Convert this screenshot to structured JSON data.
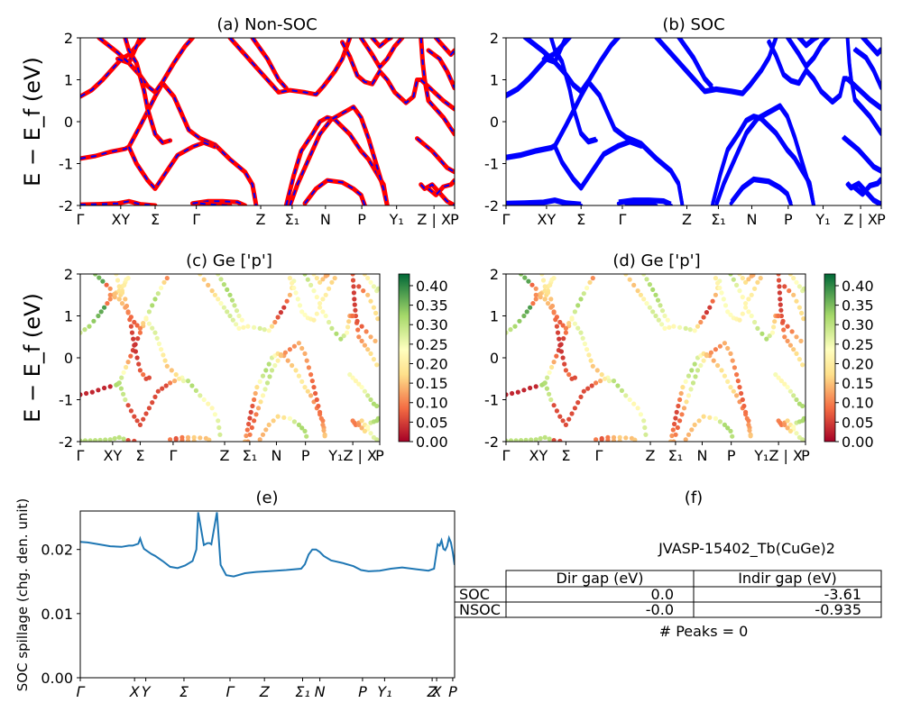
{
  "figure": {
    "ylabel_bands": "E − E_f (eV)",
    "ylabel_spillage": "SOC spillage (chg. den. unit)"
  },
  "kpath_ticks": [
    "Γ",
    "X",
    "Y",
    "Σ",
    "Γ",
    "Z",
    "Σ₁",
    "N",
    "P",
    "Y₁",
    "Z | X",
    "P"
  ],
  "chart_data": [
    {
      "id": "a",
      "type": "line",
      "title": "(a) Non-SOC",
      "xlabel": "",
      "ylabel": "E − E_f (eV)",
      "ylim": [
        -2,
        2
      ],
      "yticks": [
        -2,
        -1,
        0,
        1,
        2
      ],
      "xtick_labels": [
        "Γ",
        "XY",
        "Σ",
        "Γ",
        "Z",
        "Σ₁",
        "N",
        "P",
        "Y₁",
        "Z | X",
        "P"
      ],
      "series_colors": [
        "#ff0000",
        "#0000ff"
      ],
      "line_style": "red solid overlaid with blue dashes",
      "bands": "#bands"
    },
    {
      "id": "b",
      "type": "line",
      "title": "(b) SOC",
      "ylim": [
        -2,
        2
      ],
      "yticks": [
        -2,
        -1,
        0,
        1,
        2
      ],
      "xtick_labels": [
        "Γ",
        "XY",
        "Σ",
        "Γ",
        "Z",
        "Σ₁",
        "N",
        "P",
        "Y₁",
        "Z | X",
        "P"
      ],
      "series_colors": [
        "#0000ff"
      ]
    },
    {
      "id": "c",
      "type": "scatter",
      "title": "(c)  Ge ['p']",
      "ylabel": "E − E_f (eV)",
      "ylim": [
        -2,
        2
      ],
      "yticks": [
        -2,
        -1,
        0,
        1,
        2
      ],
      "xtick_labels": [
        "Γ",
        "XY",
        "Σ",
        "Γ",
        "Z",
        "Σ₁",
        "N",
        "P",
        "Y₁Z | X",
        "P"
      ],
      "colorbar": {
        "cmap": "RdYlGn",
        "range": [
          0.0,
          0.43
        ],
        "ticks": [
          "0.00",
          "0.05",
          "0.10",
          "0.15",
          "0.20",
          "0.25",
          "0.30",
          "0.35",
          "0.40"
        ]
      }
    },
    {
      "id": "d",
      "type": "scatter",
      "title": "(d) Ge ['p']",
      "ylim": [
        -2,
        2
      ],
      "yticks": [
        -2,
        -1,
        0,
        1,
        2
      ],
      "xtick_labels": [
        "Γ",
        "XY",
        "Σ",
        "Γ",
        "Z",
        "Σ₁",
        "N",
        "P",
        "Y₁Z | X",
        "P"
      ],
      "colorbar": {
        "cmap": "RdYlGn",
        "range": [
          0.0,
          0.43
        ],
        "ticks": [
          "0.00",
          "0.05",
          "0.10",
          "0.15",
          "0.20",
          "0.25",
          "0.30",
          "0.35",
          "0.40"
        ]
      }
    },
    {
      "id": "e",
      "type": "line",
      "title": "(e)",
      "ylabel": "SOC spillage (chg. den. unit)",
      "ylim": [
        0,
        0.026
      ],
      "yticks": [
        "0.00",
        "0.01",
        "0.02"
      ],
      "xtick_labels": [
        "Γ",
        "X",
        "Y",
        "Σ",
        "Γ",
        "Z",
        "Σ₁",
        "N",
        "P",
        "Y₁",
        "Z",
        "X",
        "P"
      ],
      "series_colors": [
        "#1f77b4"
      ],
      "x": [
        0,
        0.02,
        0.05,
        0.08,
        0.11,
        0.13,
        0.14,
        0.155,
        0.16,
        0.165,
        0.17,
        0.18,
        0.19,
        0.2,
        0.22,
        0.24,
        0.26,
        0.28,
        0.3,
        0.31,
        0.315,
        0.33,
        0.34,
        0.345,
        0.35,
        0.365,
        0.375,
        0.385,
        0.39,
        0.41,
        0.44,
        0.47,
        0.5,
        0.55,
        0.59,
        0.6,
        0.61,
        0.62,
        0.63,
        0.64,
        0.65,
        0.67,
        0.7,
        0.73,
        0.75,
        0.77,
        0.8,
        0.83,
        0.86,
        0.9,
        0.93,
        0.945,
        0.955,
        0.96,
        0.965,
        0.97,
        0.975,
        0.98,
        0.985,
        0.99,
        0.995,
        1.0
      ],
      "values": [
        0.0212,
        0.0211,
        0.0208,
        0.0205,
        0.0204,
        0.0206,
        0.0206,
        0.0209,
        0.0217,
        0.0208,
        0.0201,
        0.0197,
        0.0193,
        0.019,
        0.0182,
        0.0173,
        0.0171,
        0.0175,
        0.0182,
        0.02,
        0.0258,
        0.0207,
        0.021,
        0.021,
        0.0208,
        0.0258,
        0.0176,
        0.0165,
        0.016,
        0.0158,
        0.0163,
        0.0165,
        0.0166,
        0.0168,
        0.017,
        0.0177,
        0.0192,
        0.02,
        0.02,
        0.0196,
        0.019,
        0.0183,
        0.0179,
        0.0174,
        0.0168,
        0.0166,
        0.0167,
        0.017,
        0.0172,
        0.0169,
        0.0167,
        0.017,
        0.0208,
        0.0206,
        0.0214,
        0.0201,
        0.0199,
        0.0205,
        0.0218,
        0.0211,
        0.0196,
        0.0176
      ]
    },
    {
      "id": "f",
      "type": "table",
      "title": "(f)",
      "subtitle": "JVASP-15402_Tb(CuGe)2",
      "columns": [
        "Dir gap (eV)",
        "Indir gap (eV)"
      ],
      "rows": [
        {
          "label": "SOC",
          "values": [
            "0.0",
            "-3.61"
          ]
        },
        {
          "label": "NSOC",
          "values": [
            "-0.0",
            "-0.935"
          ]
        }
      ],
      "footer": "# Peaks = 0"
    }
  ],
  "bands": [
    [
      [
        0,
        -1.98
      ],
      [
        0.05,
        -1.97
      ],
      [
        0.1,
        -1.95
      ],
      [
        0.13,
        -1.9
      ],
      [
        0.16,
        -1.97
      ],
      [
        0.2,
        -2.0
      ]
    ],
    [
      [
        0,
        -0.88
      ],
      [
        0.04,
        -0.82
      ],
      [
        0.08,
        -0.72
      ],
      [
        0.12,
        -0.65
      ],
      [
        0.13,
        -0.6
      ],
      [
        0.16,
        -0.1
      ],
      [
        0.2,
        0.6
      ],
      [
        0.22,
        0.92
      ],
      [
        0.25,
        0.6
      ],
      [
        0.27,
        0.2
      ],
      [
        0.29,
        -0.2
      ],
      [
        0.32,
        -0.4
      ],
      [
        0.36,
        -0.55
      ],
      [
        0.4,
        -0.9
      ],
      [
        0.44,
        -1.2
      ],
      [
        0.46,
        -1.5
      ],
      [
        0.47,
        -2.0
      ]
    ],
    [
      [
        0.13,
        -0.6
      ],
      [
        0.15,
        -1.0
      ],
      [
        0.18,
        -1.4
      ],
      [
        0.2,
        -1.6
      ],
      [
        0.23,
        -1.2
      ],
      [
        0.26,
        -0.8
      ],
      [
        0.3,
        -0.6
      ],
      [
        0.33,
        -0.5
      ],
      [
        0.36,
        -0.6
      ]
    ],
    [
      [
        0,
        0.6
      ],
      [
        0.03,
        0.75
      ],
      [
        0.06,
        1.0
      ],
      [
        0.09,
        1.3
      ],
      [
        0.11,
        1.5
      ],
      [
        0.13,
        1.6
      ],
      [
        0.15,
        1.8
      ],
      [
        0.17,
        2.0
      ]
    ],
    [
      [
        0.1,
        1.5
      ],
      [
        0.13,
        1.4
      ],
      [
        0.16,
        1.1
      ],
      [
        0.18,
        0.85
      ],
      [
        0.2,
        0.7
      ],
      [
        0.22,
        0.95
      ],
      [
        0.25,
        1.4
      ],
      [
        0.28,
        1.8
      ],
      [
        0.3,
        2.0
      ]
    ],
    [
      [
        0.05,
        2.0
      ],
      [
        0.1,
        1.65
      ],
      [
        0.13,
        1.4
      ],
      [
        0.14,
        1.6
      ],
      [
        0.16,
        2.0
      ]
    ],
    [
      [
        0.12,
        2.0
      ],
      [
        0.13,
        1.7
      ],
      [
        0.15,
        1.4
      ],
      [
        0.17,
        0.75
      ],
      [
        0.18,
        0.3
      ],
      [
        0.2,
        -0.3
      ],
      [
        0.22,
        -0.5
      ],
      [
        0.24,
        -0.45
      ]
    ],
    [
      [
        0.3,
        -1.95
      ],
      [
        0.34,
        -1.9
      ],
      [
        0.38,
        -1.9
      ],
      [
        0.42,
        -1.92
      ],
      [
        0.44,
        -2.0
      ]
    ],
    [
      [
        0.32,
        -1.95
      ],
      [
        0.36,
        -1.98
      ],
      [
        0.4,
        -2.0
      ]
    ],
    [
      [
        0.4,
        2.0
      ],
      [
        0.44,
        1.6
      ],
      [
        0.47,
        1.3
      ],
      [
        0.5,
        1.0
      ],
      [
        0.53,
        0.7
      ],
      [
        0.56,
        0.75
      ],
      [
        0.6,
        0.7
      ],
      [
        0.63,
        0.65
      ],
      [
        0.65,
        0.85
      ],
      [
        0.68,
        1.2
      ],
      [
        0.7,
        1.5
      ],
      [
        0.72,
        2.0
      ]
    ],
    [
      [
        0.46,
        2.0
      ],
      [
        0.5,
        1.5
      ],
      [
        0.53,
        1.0
      ],
      [
        0.55,
        0.8
      ]
    ],
    [
      [
        0.55,
        -2.0
      ],
      [
        0.57,
        -1.3
      ],
      [
        0.59,
        -0.7
      ],
      [
        0.62,
        -0.3
      ],
      [
        0.64,
        0.0
      ],
      [
        0.66,
        0.1
      ],
      [
        0.68,
        0.05
      ],
      [
        0.72,
        -0.3
      ],
      [
        0.75,
        -0.7
      ],
      [
        0.77,
        -0.9
      ],
      [
        0.79,
        -1.2
      ],
      [
        0.81,
        -1.5
      ],
      [
        0.82,
        -2.0
      ]
    ],
    [
      [
        0.56,
        -2.0
      ],
      [
        0.58,
        -1.5
      ],
      [
        0.61,
        -0.9
      ],
      [
        0.64,
        -0.3
      ],
      [
        0.67,
        0.05
      ],
      [
        0.7,
        0.2
      ],
      [
        0.73,
        0.35
      ],
      [
        0.75,
        0.1
      ],
      [
        0.77,
        -0.4
      ],
      [
        0.79,
        -1.0
      ],
      [
        0.81,
        -1.6
      ],
      [
        0.82,
        -2.0
      ]
    ],
    [
      [
        0.6,
        -1.95
      ],
      [
        0.63,
        -1.6
      ],
      [
        0.66,
        -1.4
      ],
      [
        0.7,
        -1.45
      ],
      [
        0.73,
        -1.6
      ],
      [
        0.75,
        -1.75
      ],
      [
        0.76,
        -2.0
      ]
    ],
    [
      [
        0.7,
        1.9
      ],
      [
        0.72,
        1.55
      ],
      [
        0.74,
        1.1
      ],
      [
        0.76,
        0.95
      ],
      [
        0.78,
        0.9
      ],
      [
        0.8,
        1.2
      ],
      [
        0.82,
        1.0
      ],
      [
        0.84,
        0.7
      ],
      [
        0.87,
        0.45
      ],
      [
        0.89,
        0.6
      ],
      [
        0.9,
        1.0
      ],
      [
        0.91,
        1.0
      ]
    ],
    [
      [
        0.75,
        2.0
      ],
      [
        0.78,
        1.6
      ],
      [
        0.8,
        1.3
      ],
      [
        0.82,
        1.5
      ],
      [
        0.84,
        1.8
      ],
      [
        0.86,
        2.0
      ]
    ],
    [
      [
        0.78,
        2.0
      ],
      [
        0.8,
        1.8
      ],
      [
        0.82,
        1.95
      ],
      [
        0.83,
        2.0
      ]
    ],
    [
      [
        0.91,
        2.0
      ],
      [
        0.915,
        1.4
      ],
      [
        0.92,
        1.0
      ],
      [
        0.93,
        0.5
      ],
      [
        0.95,
        0.3
      ],
      [
        0.97,
        0.1
      ],
      [
        1.0,
        -0.3
      ]
    ],
    [
      [
        0.9,
        -0.4
      ],
      [
        0.92,
        -0.55
      ],
      [
        0.94,
        -0.7
      ],
      [
        0.96,
        -0.9
      ],
      [
        0.98,
        -1.1
      ],
      [
        1.0,
        -1.2
      ]
    ],
    [
      [
        0.91,
        -1.5
      ],
      [
        0.92,
        -1.6
      ],
      [
        0.94,
        -1.5
      ],
      [
        0.96,
        -1.7
      ],
      [
        0.98,
        -1.9
      ],
      [
        1.0,
        -2.0
      ]
    ],
    [
      [
        0.93,
        -1.6
      ],
      [
        0.95,
        -1.75
      ],
      [
        0.97,
        -1.55
      ],
      [
        0.99,
        -1.5
      ],
      [
        1.0,
        -1.4
      ]
    ],
    [
      [
        0.91,
        1.0
      ],
      [
        0.94,
        0.75
      ],
      [
        0.97,
        0.5
      ],
      [
        1.0,
        0.3
      ]
    ],
    [
      [
        0.93,
        1.7
      ],
      [
        0.96,
        1.5
      ],
      [
        0.98,
        1.2
      ],
      [
        1.0,
        0.8
      ]
    ],
    [
      [
        0.95,
        2.0
      ],
      [
        0.97,
        1.8
      ],
      [
        0.99,
        1.6
      ],
      [
        1.0,
        1.7
      ]
    ]
  ]
}
